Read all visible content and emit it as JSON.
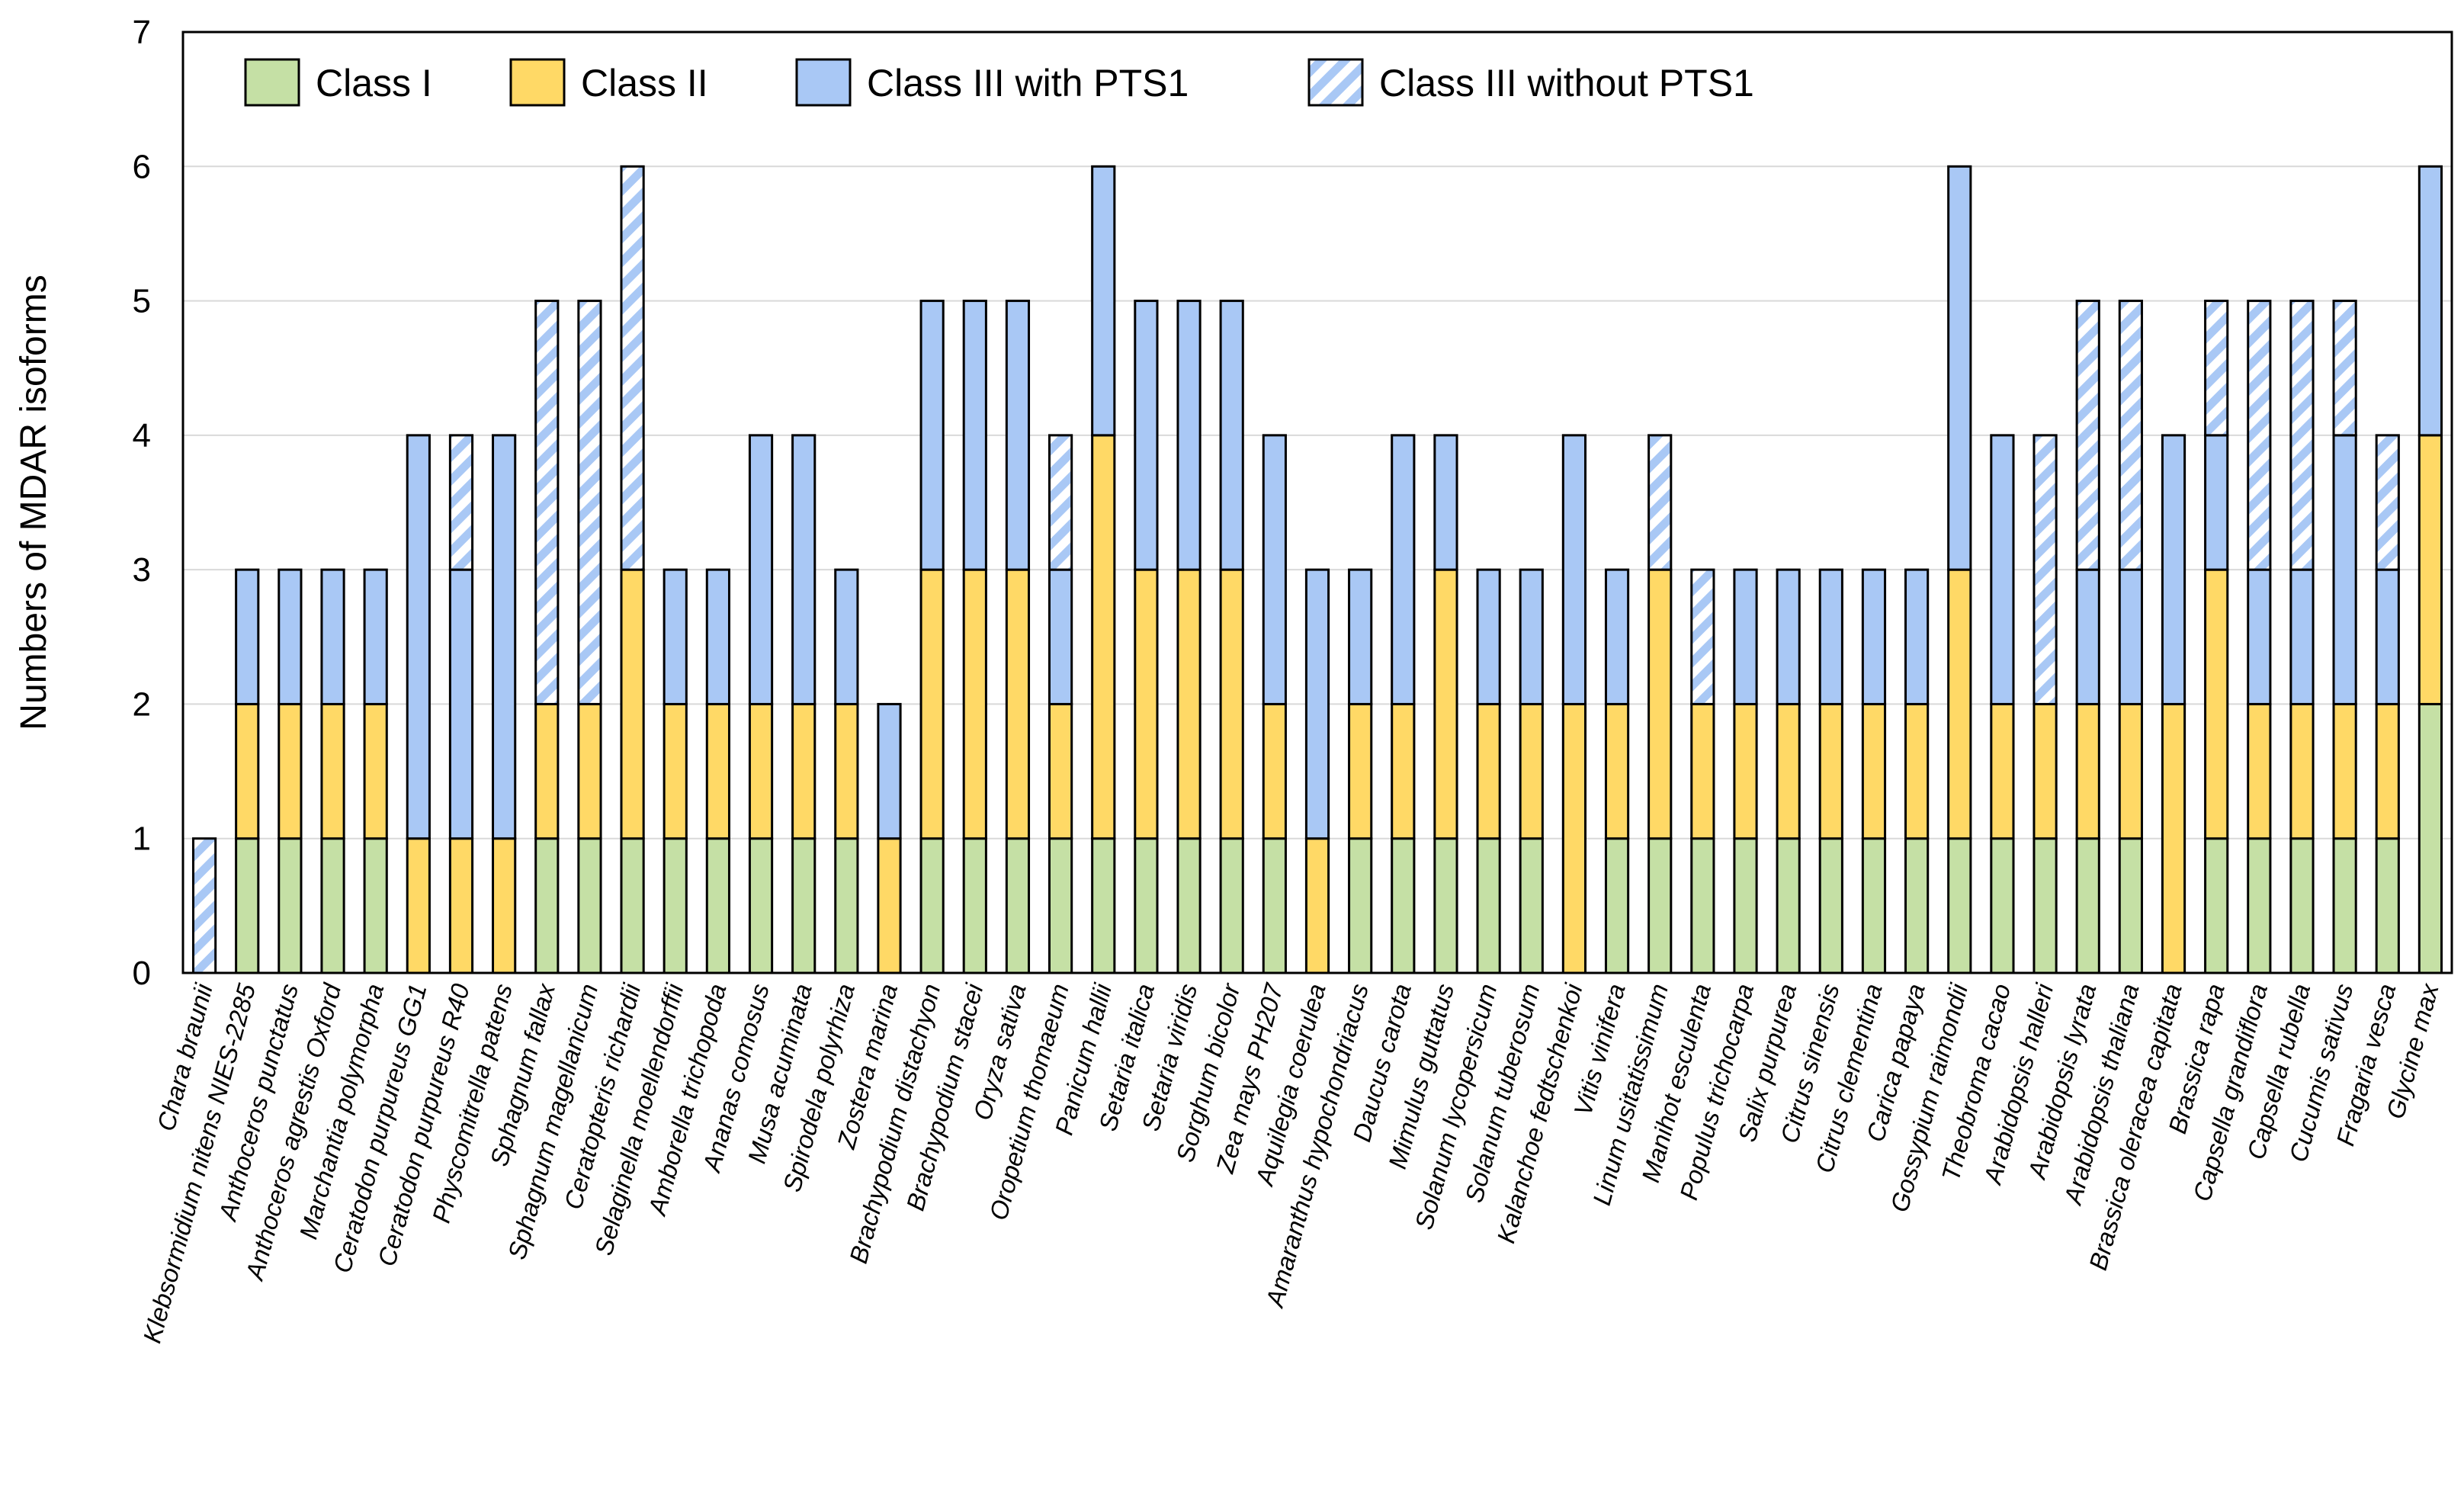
{
  "chart_data": {
    "type": "bar",
    "stacked": true,
    "title": "",
    "xlabel": "",
    "ylabel": "Numbers of MDAR isoforms",
    "ylim": [
      0,
      7
    ],
    "yticks": [
      "0",
      "1",
      "2",
      "3",
      "4",
      "5",
      "6",
      "7"
    ],
    "grid": true,
    "legend_position": "top",
    "categories": [
      "Chara braunii",
      "Klebsormidium nitens NIES-2285",
      "Anthoceros punctatus",
      "Anthoceros agrestis Oxford",
      "Marchantia polymorpha",
      "Ceratodon purpureus GG1",
      "Ceratodon purpureus R40",
      "Physcomitrella patens",
      "Sphagnum fallax",
      "Sphagnum magellanicum",
      "Ceratopteris richardii",
      "Selaginella moellendorffii",
      "Amborella trichopoda",
      "Ananas comosus",
      "Musa acuminata",
      "Spirodela polyrhiza",
      "Zostera marina",
      "Brachypodium distachyon",
      "Brachypodium stacei",
      "Oryza sativa",
      "Oropetium thomaeum",
      "Panicum hallii",
      "Setaria italica",
      "Setaria viridis",
      "Sorghum bicolor",
      "Zea mays PH207",
      "Aquilegia coerulea",
      "Amaranthus hypochondriacus",
      "Daucus carota",
      "Mimulus guttatus",
      "Solanum lycopersicum",
      "Solanum tuberosum",
      "Kalanchoe fedtschenkoi",
      "Vitis vinifera",
      "Linum usitatissimum",
      "Manihot esculenta",
      "Populus trichocarpa",
      "Salix purpurea",
      "Citrus sinensis",
      "Citrus clementina",
      "Carica papaya",
      "Gossypium raimondii",
      "Theobroma cacao",
      "Arabidopsis halleri",
      "Arabidopsis lyrata",
      "Arabidopsis thaliana",
      "Brassica oleracea capitata",
      "Brassica rapa",
      "Capsella grandiflora",
      "Capsella rubella",
      "Cucumis sativus",
      "Fragaria vesca",
      "Glycine max"
    ],
    "series": [
      {
        "name": "Class I",
        "color": "#c5e0a5",
        "values": [
          0,
          1,
          1,
          1,
          1,
          0,
          0,
          0,
          1,
          1,
          1,
          1,
          1,
          1,
          1,
          1,
          0,
          1,
          1,
          1,
          1,
          1,
          1,
          1,
          1,
          1,
          0,
          1,
          1,
          1,
          1,
          1,
          0,
          1,
          1,
          1,
          1,
          1,
          1,
          1,
          1,
          1,
          1,
          1,
          1,
          1,
          0,
          1,
          1,
          1,
          1,
          1,
          2
        ]
      },
      {
        "name": "Class II",
        "color": "#ffd966",
        "values": [
          0,
          1,
          1,
          1,
          1,
          1,
          1,
          1,
          1,
          1,
          2,
          1,
          1,
          1,
          1,
          1,
          1,
          2,
          2,
          2,
          1,
          3,
          2,
          2,
          2,
          1,
          1,
          1,
          1,
          2,
          1,
          1,
          2,
          1,
          2,
          1,
          1,
          1,
          1,
          1,
          1,
          2,
          1,
          1,
          1,
          1,
          2,
          2,
          1,
          1,
          1,
          1,
          2
        ]
      },
      {
        "name": "Class III with PTS1",
        "color": "#a9c8f5",
        "values": [
          0,
          1,
          1,
          1,
          1,
          3,
          2,
          3,
          0,
          0,
          0,
          1,
          1,
          2,
          2,
          1,
          1,
          2,
          2,
          2,
          1,
          2,
          2,
          2,
          2,
          2,
          2,
          1,
          2,
          1,
          1,
          1,
          2,
          1,
          0,
          0,
          1,
          1,
          1,
          1,
          1,
          3,
          2,
          0,
          1,
          1,
          2,
          1,
          1,
          1,
          2,
          1,
          2
        ]
      },
      {
        "name": "Class III without PTS1",
        "color": "#a9c8f5",
        "pattern": "hatched",
        "values": [
          1,
          0,
          0,
          0,
          0,
          0,
          1,
          0,
          3,
          3,
          3,
          0,
          0,
          0,
          0,
          0,
          0,
          0,
          0,
          0,
          1,
          0,
          0,
          0,
          0,
          0,
          0,
          0,
          0,
          0,
          0,
          0,
          0,
          0,
          1,
          1,
          0,
          0,
          0,
          0,
          0,
          0,
          0,
          2,
          2,
          2,
          0,
          1,
          2,
          2,
          1,
          1,
          0
        ]
      }
    ]
  }
}
